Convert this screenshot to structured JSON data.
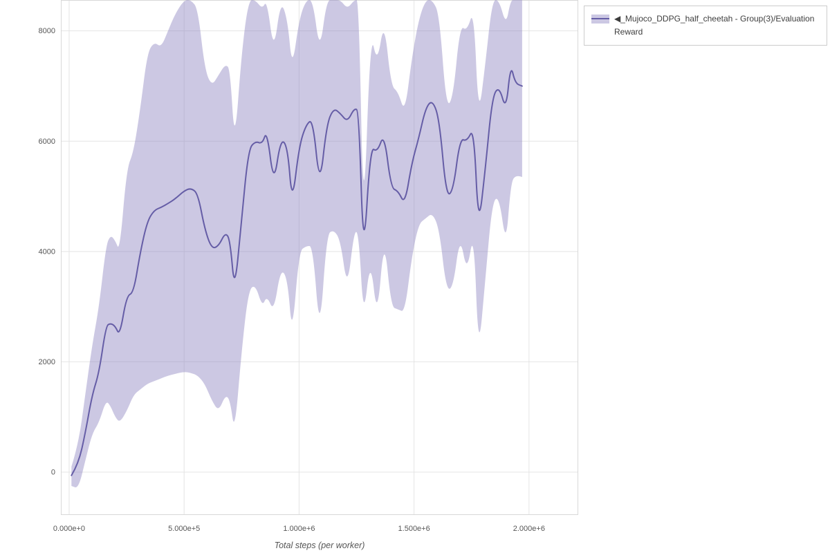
{
  "window": {
    "background": "#ffffff"
  },
  "legend": {
    "entries": [
      {
        "label": "◀_Mujoco_DDPG_half_cheetah - Group(3)/Evaluation Reward"
      }
    ]
  },
  "colors": {
    "line": "#655da6",
    "band": "#8d85c0",
    "grid": "#e4e4e4",
    "axis_border": "#d8d8d8",
    "tick_text": "#555555"
  },
  "chart_data": {
    "type": "line",
    "title": "",
    "xlabel": "Total steps (per worker)",
    "ylabel": "",
    "grid": true,
    "legend_position": "outside-top-right",
    "xlim": [
      -36000,
      2214000
    ],
    "ylim": [
      -777,
      8560
    ],
    "x_ticks": [
      {
        "value": 0,
        "label": "0.000e+0"
      },
      {
        "value": 500000,
        "label": "5.000e+5"
      },
      {
        "value": 1000000,
        "label": "1.000e+6"
      },
      {
        "value": 1500000,
        "label": "1.500e+6"
      },
      {
        "value": 2000000,
        "label": "2.000e+6"
      }
    ],
    "y_ticks": [
      {
        "value": 0,
        "label": "0"
      },
      {
        "value": 2000,
        "label": "2000"
      },
      {
        "value": 4000,
        "label": "4000"
      },
      {
        "value": 6000,
        "label": "6000"
      },
      {
        "value": 8000,
        "label": "8000"
      }
    ],
    "series": [
      {
        "name": "_Mujoco_DDPG_half_cheetah - Group(3)/Evaluation Reward",
        "line_color": "#655da6",
        "band_color": "#8d85c0",
        "band_opacity": 0.45,
        "x": [
          10000,
          40000,
          70000,
          100000,
          130000,
          160000,
          180000,
          200000,
          220000,
          250000,
          280000,
          310000,
          340000,
          370000,
          400000,
          430000,
          460000,
          500000,
          530000,
          560000,
          590000,
          620000,
          650000,
          680000,
          700000,
          720000,
          750000,
          780000,
          810000,
          840000,
          860000,
          890000,
          920000,
          950000,
          970000,
          1000000,
          1030000,
          1060000,
          1090000,
          1120000,
          1150000,
          1180000,
          1210000,
          1240000,
          1260000,
          1280000,
          1310000,
          1340000,
          1370000,
          1400000,
          1430000,
          1460000,
          1490000,
          1520000,
          1550000,
          1580000,
          1610000,
          1640000,
          1670000,
          1700000,
          1730000,
          1760000,
          1780000,
          1810000,
          1840000,
          1870000,
          1900000,
          1920000,
          1940000,
          1970000
        ],
        "mean": [
          -60,
          150,
          700,
          1400,
          1800,
          2650,
          2700,
          2650,
          2470,
          3200,
          3250,
          4000,
          4550,
          4750,
          4800,
          4870,
          4950,
          5100,
          5150,
          5050,
          4400,
          4050,
          4100,
          4350,
          4200,
          3250,
          4600,
          5850,
          6000,
          5950,
          6200,
          5200,
          6050,
          5900,
          4850,
          5900,
          6300,
          6400,
          5150,
          6300,
          6600,
          6500,
          6350,
          6600,
          6550,
          3800,
          5900,
          5800,
          6150,
          5150,
          5100,
          4850,
          5600,
          6050,
          6600,
          6750,
          6400,
          5000,
          5100,
          6050,
          6000,
          6250,
          4400,
          5500,
          6800,
          7000,
          6550,
          7400,
          7050,
          7000
        ],
        "lower": [
          -250,
          -300,
          200,
          700,
          900,
          1300,
          1200,
          1000,
          900,
          1100,
          1400,
          1500,
          1600,
          1650,
          1700,
          1750,
          1780,
          1820,
          1800,
          1750,
          1600,
          1300,
          1100,
          1400,
          1300,
          700,
          2200,
          3300,
          3400,
          3000,
          3200,
          2900,
          3700,
          3500,
          2450,
          4000,
          4100,
          4100,
          2450,
          4300,
          4400,
          4200,
          3300,
          4400,
          4300,
          2750,
          3900,
          2750,
          4300,
          3000,
          2950,
          2900,
          3900,
          4500,
          4600,
          4700,
          4400,
          3300,
          3350,
          4300,
          3600,
          4400,
          2100,
          3500,
          4900,
          5000,
          4100,
          5200,
          5400,
          5350
        ],
        "upper": [
          100,
          500,
          1400,
          2300,
          3000,
          4100,
          4300,
          4200,
          4000,
          5500,
          5800,
          6600,
          7600,
          7800,
          7700,
          8000,
          8300,
          8560,
          8560,
          8400,
          7300,
          7000,
          7200,
          7400,
          7300,
          5900,
          7600,
          8560,
          8560,
          8400,
          8560,
          7600,
          8560,
          8200,
          7300,
          8200,
          8560,
          8560,
          7600,
          8560,
          8560,
          8560,
          8400,
          8560,
          8560,
          4300,
          8000,
          7400,
          8200,
          7000,
          6900,
          6500,
          7500,
          8200,
          8560,
          8560,
          8300,
          6600,
          6800,
          8100,
          8000,
          8400,
          6400,
          7400,
          8560,
          8560,
          8100,
          8560,
          8560,
          8560
        ]
      }
    ]
  }
}
